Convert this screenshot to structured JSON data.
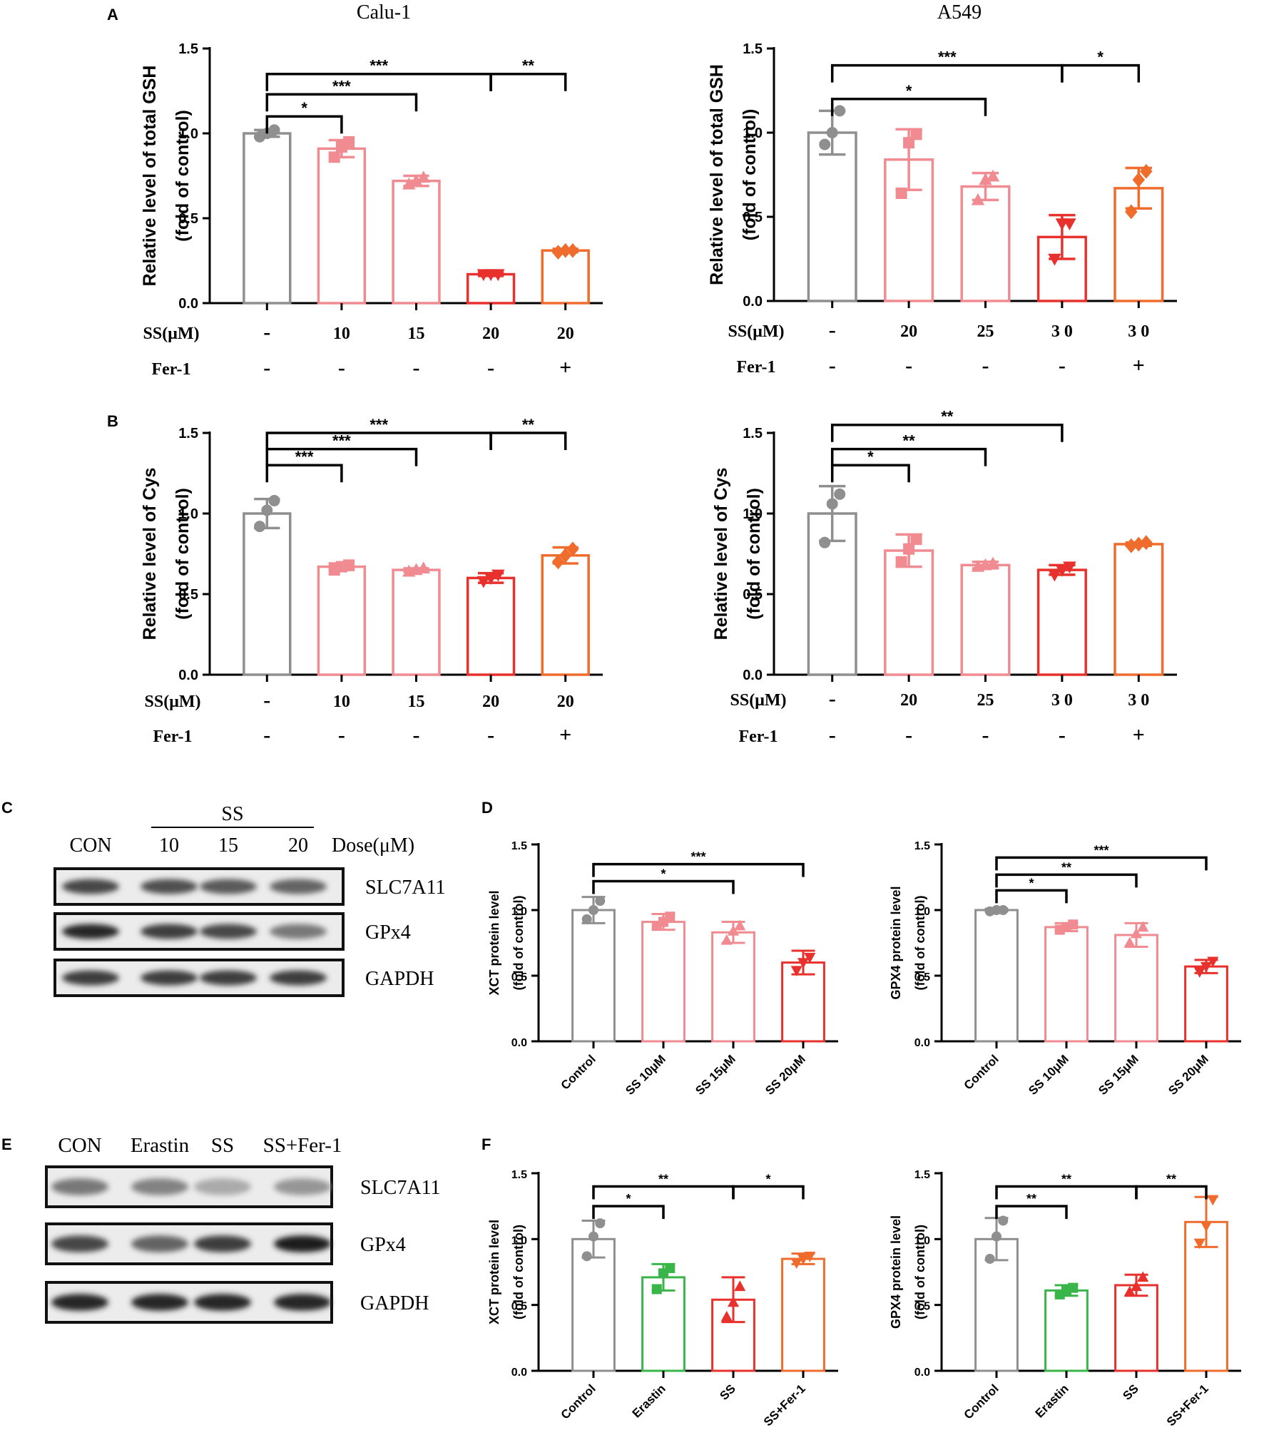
{
  "panel_letters": [
    "A",
    "B",
    "C",
    "D",
    "E",
    "F"
  ],
  "colors": {
    "control": "#8f8f8f",
    "ss_light": "#f08b91",
    "ss_mid": "#f28d93",
    "ss_red": "#e8312c",
    "fer": "#f06c2d",
    "erastin": "#39b54a",
    "axis": "#000000"
  },
  "chart_data": [
    {
      "id": "A_calu1",
      "type": "bar",
      "title": "Calu-1",
      "ylabel_lines": [
        "Relative level of total GSH",
        "(fold of control)"
      ],
      "ylim": [
        0,
        1.5
      ],
      "yticks": [
        "0.0",
        "0.5",
        "1.0",
        "1.5"
      ],
      "categories": [
        "control",
        "SS 10",
        "SS 15",
        "SS 20",
        "SS 20 + Fer-1"
      ],
      "values": [
        1.0,
        0.91,
        0.72,
        0.17,
        0.31
      ],
      "errors": [
        0.02,
        0.05,
        0.03,
        0.01,
        0.01
      ],
      "points": [
        [
          0.98,
          1.0,
          1.02
        ],
        [
          0.86,
          0.92,
          0.95
        ],
        [
          0.7,
          0.72,
          0.74
        ],
        [
          0.17,
          0.17,
          0.17
        ],
        [
          0.3,
          0.31,
          0.31
        ]
      ],
      "markers": [
        "circle",
        "square",
        "triangle-up",
        "triangle-down",
        "diamond"
      ],
      "colors": [
        "#8f8f8f",
        "#f08b91",
        "#f08b91",
        "#e8312c",
        "#f06c2d"
      ],
      "ss_label": "SS(μM)",
      "fer_label": "Fer-1",
      "ss_values": [
        "-",
        "10",
        "15",
        "20",
        "20"
      ],
      "fer_values": [
        "-",
        "-",
        "-",
        "-",
        "+"
      ],
      "brackets": [
        {
          "from": 0,
          "to": 1,
          "level": 1.1,
          "label": "*"
        },
        {
          "from": 0,
          "to": 2,
          "level": 1.23,
          "label": "***"
        },
        {
          "from": 0,
          "to": 3,
          "level": 1.35,
          "label": "***"
        },
        {
          "from": 3,
          "to": 4,
          "level": 1.35,
          "label": "**"
        }
      ]
    },
    {
      "id": "A_a549",
      "type": "bar",
      "title": "A549",
      "ylabel_lines": [
        "Relative level of total GSH",
        "(fold of control)"
      ],
      "ylim": [
        0,
        1.5
      ],
      "yticks": [
        "0.0",
        "0.5",
        "1.0",
        "1.5"
      ],
      "categories": [
        "control",
        "SS 20",
        "SS 25",
        "SS 30",
        "SS 30 + Fer-1"
      ],
      "values": [
        1.0,
        0.84,
        0.68,
        0.38,
        0.67
      ],
      "errors": [
        0.13,
        0.18,
        0.08,
        0.13,
        0.12
      ],
      "points": [
        [
          0.93,
          1.0,
          1.13
        ],
        [
          0.64,
          0.94,
          0.99
        ],
        [
          0.6,
          0.72,
          0.74
        ],
        [
          0.25,
          0.46,
          0.46
        ],
        [
          0.53,
          0.72,
          0.77
        ]
      ],
      "markers": [
        "circle",
        "square",
        "triangle-up",
        "triangle-down",
        "diamond"
      ],
      "colors": [
        "#8f8f8f",
        "#f08b91",
        "#f08b91",
        "#e8312c",
        "#f06c2d"
      ],
      "ss_label": "SS(μM)",
      "fer_label": "Fer-1",
      "ss_values": [
        "-",
        "20",
        "25",
        "3 0",
        "3 0"
      ],
      "fer_values": [
        "-",
        "-",
        "-",
        "-",
        "+"
      ],
      "brackets": [
        {
          "from": 0,
          "to": 2,
          "level": 1.2,
          "label": "*"
        },
        {
          "from": 0,
          "to": 3,
          "level": 1.4,
          "label": "***"
        },
        {
          "from": 3,
          "to": 4,
          "level": 1.4,
          "label": "*"
        }
      ]
    },
    {
      "id": "B_calu1",
      "type": "bar",
      "title": "",
      "ylabel_lines": [
        "Relative level of  Cys",
        "(fold of control)"
      ],
      "ylim": [
        0,
        1.5
      ],
      "yticks": [
        "0.0",
        "0.5",
        "1.0",
        "1.5"
      ],
      "categories": [
        "control",
        "SS 10",
        "SS 15",
        "SS 20",
        "SS 20 + Fer-1"
      ],
      "values": [
        1.0,
        0.67,
        0.65,
        0.6,
        0.74
      ],
      "errors": [
        0.09,
        0.02,
        0.01,
        0.03,
        0.05
      ],
      "points": [
        [
          0.92,
          1.02,
          1.08
        ],
        [
          0.65,
          0.67,
          0.68
        ],
        [
          0.64,
          0.65,
          0.66
        ],
        [
          0.58,
          0.6,
          0.62
        ],
        [
          0.7,
          0.74,
          0.78
        ]
      ],
      "markers": [
        "circle",
        "square",
        "triangle-up",
        "triangle-down",
        "diamond"
      ],
      "colors": [
        "#8f8f8f",
        "#f08b91",
        "#f08b91",
        "#e8312c",
        "#f06c2d"
      ],
      "ss_label": "SS(μM)",
      "fer_label": "Fer-1",
      "ss_values": [
        "-",
        "10",
        "15",
        "20",
        "20"
      ],
      "fer_values": [
        "-",
        "-",
        "-",
        "-",
        "+"
      ],
      "brackets": [
        {
          "from": 0,
          "to": 1,
          "level": 1.3,
          "label": "***"
        },
        {
          "from": 0,
          "to": 2,
          "level": 1.4,
          "label": "***"
        },
        {
          "from": 0,
          "to": 3,
          "level": 1.5,
          "label": "***"
        },
        {
          "from": 3,
          "to": 4,
          "level": 1.5,
          "label": "**"
        }
      ]
    },
    {
      "id": "B_a549",
      "type": "bar",
      "title": "",
      "ylabel_lines": [
        "Relative level of  Cys",
        "(fold of control)"
      ],
      "ylim": [
        0,
        1.5
      ],
      "yticks": [
        "0.0",
        "0.5",
        "1.0",
        "1.5"
      ],
      "categories": [
        "control",
        "SS 20",
        "SS 25",
        "SS 30",
        "SS 30 + Fer-1"
      ],
      "values": [
        1.0,
        0.77,
        0.68,
        0.65,
        0.81
      ],
      "errors": [
        0.17,
        0.1,
        0.02,
        0.03,
        0.01
      ],
      "points": [
        [
          0.82,
          1.06,
          1.12
        ],
        [
          0.7,
          0.78,
          0.84
        ],
        [
          0.67,
          0.68,
          0.69
        ],
        [
          0.62,
          0.65,
          0.67
        ],
        [
          0.8,
          0.81,
          0.82
        ]
      ],
      "markers": [
        "circle",
        "square",
        "triangle-up",
        "triangle-down",
        "diamond"
      ],
      "colors": [
        "#8f8f8f",
        "#f08b91",
        "#f08b91",
        "#e8312c",
        "#f06c2d"
      ],
      "ss_label": "SS(μM)",
      "fer_label": "Fer-1",
      "ss_values": [
        "-",
        "20",
        "25",
        "3 0",
        "3 0"
      ],
      "fer_values": [
        "-",
        "-",
        "-",
        "-",
        "+"
      ],
      "brackets": [
        {
          "from": 0,
          "to": 1,
          "level": 1.3,
          "label": "*"
        },
        {
          "from": 0,
          "to": 2,
          "level": 1.4,
          "label": "**"
        },
        {
          "from": 0,
          "to": 3,
          "level": 1.55,
          "label": "**"
        }
      ]
    },
    {
      "id": "D_xct",
      "type": "bar",
      "title": "",
      "ylabel_lines": [
        "XCT protein level",
        "(fold of control)"
      ],
      "ylim": [
        0,
        1.5
      ],
      "yticks": [
        "0.0",
        "0.5",
        "1.0",
        "1.5"
      ],
      "categories": [
        "Control",
        "SS 10μM",
        "SS 15μM",
        "SS 20μM"
      ],
      "values": [
        1.0,
        0.91,
        0.83,
        0.6
      ],
      "errors": [
        0.1,
        0.06,
        0.08,
        0.09
      ],
      "points": [
        [
          0.93,
          1.0,
          1.07
        ],
        [
          0.88,
          0.91,
          0.95
        ],
        [
          0.77,
          0.84,
          0.88
        ],
        [
          0.54,
          0.6,
          0.64
        ]
      ],
      "markers": [
        "circle",
        "square",
        "triangle-up",
        "triangle-down"
      ],
      "colors": [
        "#8f8f8f",
        "#f08b91",
        "#f08b91",
        "#e8312c"
      ],
      "brackets": [
        {
          "from": 0,
          "to": 2,
          "level": 1.22,
          "label": "*"
        },
        {
          "from": 0,
          "to": 3,
          "level": 1.35,
          "label": "***"
        }
      ]
    },
    {
      "id": "D_gpx4",
      "type": "bar",
      "title": "",
      "ylabel_lines": [
        "GPX4 protein level",
        "(fold of control)"
      ],
      "ylim": [
        0,
        1.5
      ],
      "yticks": [
        "0.0",
        "0.5",
        "1.0",
        "1.5"
      ],
      "categories": [
        "Control",
        "SS 10μM",
        "SS 15μM",
        "SS 20μM"
      ],
      "values": [
        1.0,
        0.87,
        0.81,
        0.57
      ],
      "errors": [
        0.01,
        0.03,
        0.09,
        0.05
      ],
      "points": [
        [
          0.99,
          1.0,
          1.0
        ],
        [
          0.85,
          0.87,
          0.89
        ],
        [
          0.75,
          0.82,
          0.87
        ],
        [
          0.53,
          0.57,
          0.61
        ]
      ],
      "markers": [
        "circle",
        "square",
        "triangle-up",
        "triangle-down"
      ],
      "colors": [
        "#8f8f8f",
        "#f08b91",
        "#f08b91",
        "#e8312c"
      ],
      "brackets": [
        {
          "from": 0,
          "to": 1,
          "level": 1.15,
          "label": "*"
        },
        {
          "from": 0,
          "to": 2,
          "level": 1.27,
          "label": "**"
        },
        {
          "from": 0,
          "to": 3,
          "level": 1.4,
          "label": "***"
        }
      ]
    },
    {
      "id": "F_xct",
      "type": "bar",
      "title": "",
      "ylabel_lines": [
        "XCT protein level",
        "(fold of control)"
      ],
      "ylim": [
        0,
        1.5
      ],
      "yticks": [
        "0.0",
        "0.5",
        "1.0",
        "1.5"
      ],
      "categories": [
        "Control",
        "Erastin",
        "SS",
        "SS+Fer-1"
      ],
      "values": [
        1.0,
        0.71,
        0.54,
        0.85
      ],
      "errors": [
        0.14,
        0.1,
        0.17,
        0.04
      ],
      "points": [
        [
          0.87,
          1.02,
          1.12
        ],
        [
          0.62,
          0.74,
          0.78
        ],
        [
          0.41,
          0.52,
          0.64
        ],
        [
          0.82,
          0.85,
          0.87
        ]
      ],
      "markers": [
        "circle",
        "square",
        "triangle-up",
        "triangle-down"
      ],
      "colors": [
        "#8f8f8f",
        "#39b54a",
        "#e8312c",
        "#f06c2d"
      ],
      "brackets": [
        {
          "from": 0,
          "to": 1,
          "level": 1.25,
          "label": "*"
        },
        {
          "from": 0,
          "to": 2,
          "level": 1.4,
          "label": "**"
        },
        {
          "from": 2,
          "to": 3,
          "level": 1.4,
          "label": "*"
        }
      ]
    },
    {
      "id": "F_gpx4",
      "type": "bar",
      "title": "",
      "ylabel_lines": [
        "GPX4 protein level",
        "(fold of control)"
      ],
      "ylim": [
        0,
        1.5
      ],
      "yticks": [
        "0.0",
        "0.5",
        "1.0",
        "1.5"
      ],
      "categories": [
        "Control",
        "Erastin",
        "SS",
        "SS+Fer-1"
      ],
      "values": [
        1.0,
        0.61,
        0.65,
        1.13
      ],
      "errors": [
        0.16,
        0.04,
        0.08,
        0.19
      ],
      "points": [
        [
          0.85,
          1.02,
          1.14
        ],
        [
          0.58,
          0.61,
          0.63
        ],
        [
          0.6,
          0.64,
          0.71
        ],
        [
          0.97,
          1.1,
          1.3
        ]
      ],
      "markers": [
        "circle",
        "square",
        "triangle-up",
        "triangle-down"
      ],
      "colors": [
        "#8f8f8f",
        "#39b54a",
        "#e8312c",
        "#f06c2d"
      ],
      "brackets": [
        {
          "from": 0,
          "to": 1,
          "level": 1.25,
          "label": "**"
        },
        {
          "from": 0,
          "to": 2,
          "level": 1.4,
          "label": "**"
        },
        {
          "from": 2,
          "to": 3,
          "level": 1.4,
          "label": "**"
        }
      ]
    }
  ],
  "blots": [
    {
      "id": "C",
      "group_label": "SS",
      "lane_labels": [
        "CON",
        "10",
        "15",
        "20"
      ],
      "dose_label": "Dose(μM)",
      "rows": [
        {
          "name": "SLC7A11",
          "intensity": [
            0.8,
            0.75,
            0.7,
            0.65
          ]
        },
        {
          "name": "GPx4",
          "intensity": [
            0.95,
            0.85,
            0.8,
            0.55
          ]
        },
        {
          "name": "GAPDH",
          "intensity": [
            0.85,
            0.85,
            0.85,
            0.85
          ]
        }
      ]
    },
    {
      "id": "E",
      "lane_labels": [
        "CON",
        "Erastin",
        "SS",
        "SS+Fer-1"
      ],
      "rows": [
        {
          "name": "SLC7A11",
          "intensity": [
            0.55,
            0.5,
            0.3,
            0.4
          ]
        },
        {
          "name": "GPx4",
          "intensity": [
            0.8,
            0.65,
            0.85,
            1.0
          ]
        },
        {
          "name": "GAPDH",
          "intensity": [
            0.95,
            0.95,
            0.95,
            0.95
          ]
        }
      ]
    }
  ]
}
